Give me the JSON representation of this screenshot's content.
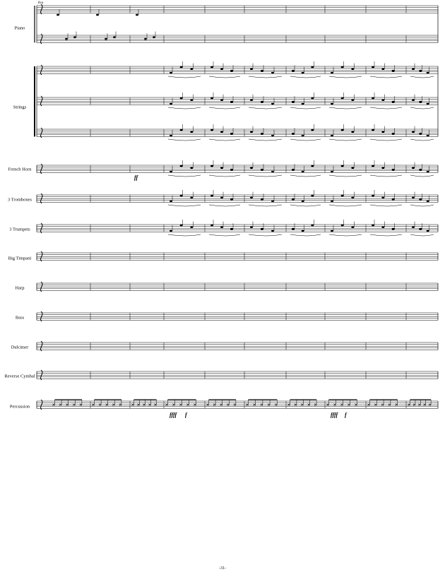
{
  "header": {
    "ottava": "8va"
  },
  "staves": [
    {
      "label": "Piano"
    },
    {
      "label": "Strings"
    },
    {
      "label": "French Horn"
    },
    {
      "label": "3 Trombones"
    },
    {
      "label": "3 Trumpets"
    },
    {
      "label": "Big Timpani"
    },
    {
      "label": "Harp"
    },
    {
      "label": "Bass"
    },
    {
      "label": "Dulcimer"
    },
    {
      "label": "Reverse Cymbal"
    },
    {
      "label": "Percussion"
    }
  ],
  "dynamics": [
    "ff",
    "ffff",
    "f",
    "ffff",
    "f"
  ],
  "footer": {
    "page_number": "-31-"
  }
}
